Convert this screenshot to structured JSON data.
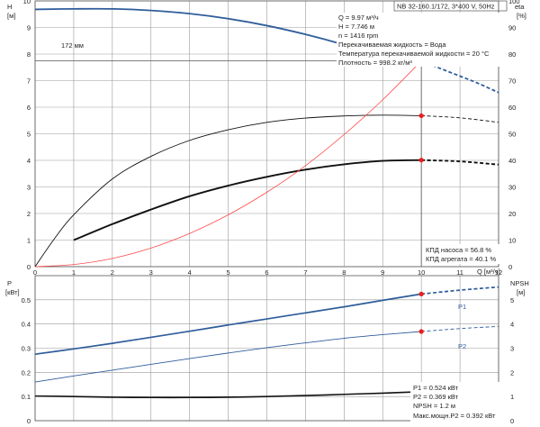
{
  "header": {
    "model": "NB 32-160.1/172, 3*400 V, 50Hz"
  },
  "info_box": {
    "q": "Q = 9.97 м³/ч",
    "h": "H = 7.746 м",
    "n": "n = 1416 rpm",
    "liquid": "Перекачиваемая жидкость = Вода",
    "temperature": "Температура перекачиваемой жидкости = 20 °C",
    "density": "Плотность = 998.2 кг/м³"
  },
  "efficiency_box": {
    "pump": "КПД насоса = 56.8 %",
    "unit": "КПД агрегата = 40.1 %"
  },
  "power_box": {
    "p1": "P1 = 0.524 кВт",
    "p2": "P2 = 0.369 кВт",
    "npsh": "NPSH = 1.2 м",
    "max_p2": "Макс.мощн.P2 = 0.392 кВт"
  },
  "colors": {
    "curve_blue": "#2f5d9b",
    "curve_black": "#111111",
    "curve_red": "#ff4b4b",
    "duty_red": "#ee1c1c",
    "duty_yellow": "#f2c418"
  },
  "chart_data": [
    {
      "type": "line",
      "panel": "head-efficiency",
      "ylabel_left": "H",
      "ylabel_left_unit": "[м]",
      "ylabel_right": "eta",
      "ylabel_right_unit": "[%]",
      "xlabel": "Q [м³/ч]",
      "xlim": [
        0,
        12
      ],
      "ylim_left": [
        0,
        10
      ],
      "ylim_right": [
        0,
        100
      ],
      "x_ticks": [
        0,
        1,
        2,
        3,
        4,
        5,
        6,
        7,
        8,
        9,
        10,
        11,
        12
      ],
      "y_ticks_left": [
        0,
        1,
        2,
        3,
        4,
        5,
        6,
        7,
        8,
        9,
        10
      ],
      "y_ticks_right": [
        0,
        10,
        20,
        30,
        40,
        50,
        60,
        70,
        80,
        90,
        100
      ],
      "curve_label": "172 мм",
      "series": [
        {
          "key": "head",
          "axis": "left",
          "color": "#2f5d9b",
          "x": [
            0,
            1,
            2,
            3,
            4,
            5,
            6,
            7,
            8,
            9,
            10
          ],
          "y": [
            9.68,
            9.7,
            9.7,
            9.64,
            9.52,
            9.33,
            9.07,
            8.74,
            8.35,
            7.9,
            7.74
          ],
          "extension_x": [
            10,
            10.5,
            11,
            11.5,
            12
          ],
          "extension_y": [
            7.74,
            7.45,
            7.17,
            6.88,
            6.55
          ]
        },
        {
          "key": "eta-pump",
          "axis": "right",
          "color": "#111111",
          "x": [
            0,
            0.5,
            1,
            2,
            3,
            4,
            5,
            6,
            7,
            8,
            9,
            10
          ],
          "y": [
            0,
            10.5,
            19.5,
            33,
            41.5,
            47.5,
            51.5,
            54.3,
            55.9,
            56.7,
            57,
            56.8
          ],
          "extension_x": [
            10,
            11,
            12
          ],
          "extension_y": [
            56.8,
            56,
            54.3
          ]
        },
        {
          "key": "eta-unit",
          "axis": "right",
          "color": "#111111",
          "x": [
            1,
            2,
            3,
            4,
            5,
            6,
            7,
            8,
            9,
            10
          ],
          "y": [
            10,
            16,
            21.5,
            26.5,
            30.5,
            33.8,
            36.5,
            38.5,
            39.8,
            40.1
          ],
          "extension_x": [
            10,
            11,
            12
          ],
          "extension_y": [
            40.1,
            39.6,
            38.4
          ]
        },
        {
          "key": "system-curve",
          "axis": "left",
          "color": "#ff4b4b",
          "x": [
            0,
            1,
            2,
            3,
            4,
            5,
            6,
            7,
            8,
            9,
            10
          ],
          "y": [
            0,
            0.08,
            0.31,
            0.7,
            1.25,
            1.95,
            2.8,
            3.8,
            4.97,
            6.28,
            7.74
          ]
        }
      ],
      "duty_point": {
        "q": 10,
        "h": 7.746,
        "eta_pump": 56.8,
        "eta_unit": 40.1
      }
    },
    {
      "type": "line",
      "panel": "power-npsh",
      "ylabel_left": "P",
      "ylabel_left_unit": "[кВт]",
      "ylabel_right": "NPSH",
      "ylabel_right_unit": "[м]",
      "xlim": [
        0,
        12
      ],
      "ylim_left": [
        0,
        0.6
      ],
      "ylim_right": [
        0,
        6
      ],
      "y_ticks_left": [
        0,
        0.1,
        0.2,
        0.3,
        0.4,
        0.5
      ],
      "y_ticks_right": [
        0,
        1,
        2,
        3,
        4,
        5
      ],
      "series": [
        {
          "key": "P1",
          "name": "P1",
          "axis": "left",
          "color": "#2f5d9b",
          "x": [
            0,
            1,
            2,
            3,
            4,
            5,
            6,
            7,
            8,
            9,
            10
          ],
          "y": [
            0.275,
            0.297,
            0.32,
            0.345,
            0.37,
            0.396,
            0.421,
            0.446,
            0.471,
            0.498,
            0.524
          ],
          "extension_x": [
            10,
            11,
            12
          ],
          "extension_y": [
            0.524,
            0.54,
            0.553
          ]
        },
        {
          "key": "P2",
          "name": "P2",
          "axis": "left",
          "color": "#2f5d9b",
          "x": [
            0,
            1,
            2,
            3,
            4,
            5,
            6,
            7,
            8,
            9,
            10
          ],
          "y": [
            0.16,
            0.185,
            0.209,
            0.233,
            0.257,
            0.28,
            0.302,
            0.322,
            0.341,
            0.356,
            0.369
          ],
          "extension_x": [
            10,
            11,
            12
          ],
          "extension_y": [
            0.369,
            0.381,
            0.39
          ]
        },
        {
          "key": "NPSH",
          "axis": "right",
          "color": "#111111",
          "x": [
            0,
            1,
            2,
            3,
            4,
            5,
            6,
            7,
            8,
            9,
            10
          ],
          "y": [
            1.02,
            1.0,
            0.97,
            0.96,
            0.96,
            0.97,
            1.0,
            1.04,
            1.09,
            1.14,
            1.2
          ],
          "extension_x": [
            10,
            11,
            12
          ],
          "extension_y": [
            1.2,
            1.26,
            1.32
          ]
        }
      ],
      "duty_point": {
        "q": 10,
        "p1": 0.524,
        "p2": 0.369,
        "npsh": 1.2
      }
    }
  ]
}
